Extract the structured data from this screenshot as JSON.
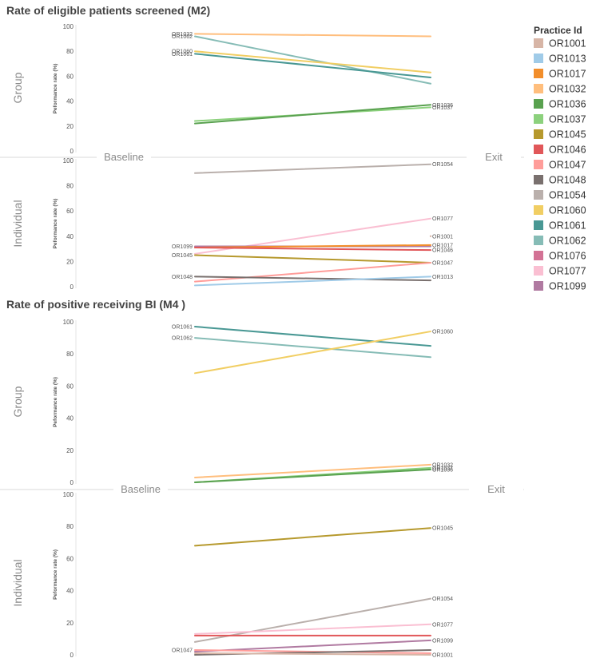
{
  "legend": {
    "title": "Practice Id",
    "items": [
      {
        "id": "OR1001",
        "color": "#d7b5a6"
      },
      {
        "id": "OR1013",
        "color": "#a0cbe8"
      },
      {
        "id": "OR1017",
        "color": "#f28e2b"
      },
      {
        "id": "OR1032",
        "color": "#ffbe7d"
      },
      {
        "id": "OR1036",
        "color": "#59a14f"
      },
      {
        "id": "OR1037",
        "color": "#8cd17d"
      },
      {
        "id": "OR1045",
        "color": "#b6992d"
      },
      {
        "id": "OR1046",
        "color": "#e15759"
      },
      {
        "id": "OR1047",
        "color": "#ff9d9a"
      },
      {
        "id": "OR1048",
        "color": "#79706e"
      },
      {
        "id": "OR1054",
        "color": "#bab0ac"
      },
      {
        "id": "OR1060",
        "color": "#f1ce63"
      },
      {
        "id": "OR1061",
        "color": "#499894"
      },
      {
        "id": "OR1062",
        "color": "#86bcb6"
      },
      {
        "id": "OR1076",
        "color": "#d37295"
      },
      {
        "id": "OR1077",
        "color": "#fabfd2"
      },
      {
        "id": "OR1099",
        "color": "#b07aa1"
      }
    ]
  },
  "chart_data": [
    {
      "type": "line",
      "title": "Rate of eligible patients screened (M2)",
      "categories": [
        "Baseline",
        "Exit"
      ],
      "ylabel": "Peformance rate (%)",
      "ylim": [
        0,
        100
      ],
      "yticks": [
        0,
        20,
        40,
        60,
        80,
        100
      ],
      "panels": [
        {
          "name": "Group",
          "series": [
            {
              "id": "OR1032",
              "values": [
                94,
                92
              ],
              "label_start": "OR1032",
              "label_end": ""
            },
            {
              "id": "OR1062",
              "values": [
                92,
                54
              ],
              "label_start": "OR1062",
              "label_end": ""
            },
            {
              "id": "OR1060",
              "values": [
                80,
                63
              ],
              "label_start": "OR1060",
              "label_end": ""
            },
            {
              "id": "OR1061",
              "values": [
                78,
                59
              ],
              "label_start": "OR1061",
              "label_end": ""
            },
            {
              "id": "OR1037",
              "values": [
                24,
                35
              ],
              "label_start": "",
              "label_end": "OR1037"
            },
            {
              "id": "OR1036",
              "values": [
                22,
                37
              ],
              "label_start": "",
              "label_end": "OR1036"
            }
          ]
        },
        {
          "name": "Individual",
          "series": [
            {
              "id": "OR1054",
              "values": [
                90,
                97
              ],
              "label_start": "",
              "label_end": "OR1054"
            },
            {
              "id": "OR1077",
              "values": [
                26,
                54
              ],
              "label_start": "",
              "label_end": "OR1077"
            },
            {
              "id": "OR1001",
              "values": [
                null,
                40
              ],
              "label_start": "",
              "label_end": "OR1001"
            },
            {
              "id": "OR1099",
              "values": [
                32,
                32
              ],
              "label_start": "OR1099",
              "label_end": ""
            },
            {
              "id": "OR1017",
              "values": [
                31,
                33
              ],
              "label_start": "",
              "label_end": "OR1017"
            },
            {
              "id": "OR1046",
              "values": [
                31,
                29
              ],
              "label_start": "",
              "label_end": "OR1046"
            },
            {
              "id": "OR1045",
              "values": [
                25,
                19
              ],
              "label_start": "OR1045",
              "label_end": ""
            },
            {
              "id": "OR1047",
              "values": [
                4,
                19
              ],
              "label_start": "",
              "label_end": "OR1047"
            },
            {
              "id": "OR1048",
              "values": [
                8,
                5
              ],
              "label_start": "OR1048",
              "label_end": ""
            },
            {
              "id": "OR1013",
              "values": [
                1,
                8
              ],
              "label_start": "",
              "label_end": "OR1013"
            }
          ]
        }
      ]
    },
    {
      "type": "line",
      "title": "Rate of positive receiving BI (M4 )",
      "categories": [
        "Baseline",
        "Exit"
      ],
      "ylabel": "Peformance rate (%)",
      "ylim": [
        0,
        100
      ],
      "yticks": [
        0,
        20,
        40,
        60,
        80,
        100
      ],
      "panels": [
        {
          "name": "Group",
          "series": [
            {
              "id": "OR1061",
              "values": [
                97,
                85
              ],
              "label_start": "OR1061",
              "label_end": ""
            },
            {
              "id": "OR1062",
              "values": [
                90,
                78
              ],
              "label_start": "OR1062",
              "label_end": ""
            },
            {
              "id": "OR1060",
              "values": [
                68,
                94
              ],
              "label_start": "",
              "label_end": "OR1060"
            },
            {
              "id": "OR1032",
              "values": [
                3,
                11
              ],
              "label_start": "",
              "label_end": "OR1032"
            },
            {
              "id": "OR1037",
              "values": [
                0,
                9
              ],
              "label_start": "",
              "label_end": "OR1037"
            },
            {
              "id": "OR1036",
              "values": [
                0,
                8
              ],
              "label_start": "",
              "label_end": "OR1036"
            }
          ]
        },
        {
          "name": "Individual",
          "series": [
            {
              "id": "OR1045",
              "values": [
                68,
                79
              ],
              "label_start": "",
              "label_end": "OR1045"
            },
            {
              "id": "OR1054",
              "values": [
                8,
                35
              ],
              "label_start": "",
              "label_end": "OR1054"
            },
            {
              "id": "OR1077",
              "values": [
                13,
                19
              ],
              "label_start": "",
              "label_end": "OR1077"
            },
            {
              "id": "OR1046",
              "values": [
                12,
                12
              ],
              "label_start": "",
              "label_end": ""
            },
            {
              "id": "OR1099",
              "values": [
                2,
                9
              ],
              "label_start": "",
              "label_end": "OR1099"
            },
            {
              "id": "OR1047",
              "values": [
                3,
                1
              ],
              "label_start": "OR1047",
              "label_end": ""
            },
            {
              "id": "OR1048",
              "values": [
                0,
                3
              ],
              "label_start": "",
              "label_end": ""
            },
            {
              "id": "OR1001",
              "values": [
                1,
                0
              ],
              "label_start": "",
              "label_end": "OR1001"
            }
          ]
        }
      ]
    }
  ]
}
